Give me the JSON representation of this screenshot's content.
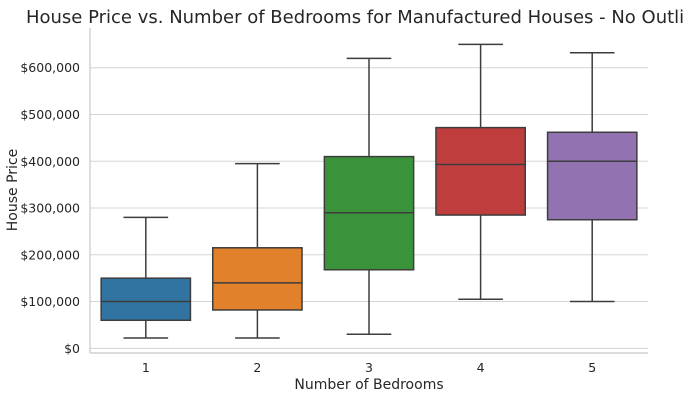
{
  "chart_data": {
    "type": "box",
    "title": "House Price vs. Number of Bedrooms for Manufactured Houses - No Outliers",
    "xlabel": "Number of Bedrooms",
    "ylabel": "House Price",
    "categories": [
      "1",
      "2",
      "3",
      "4",
      "5"
    ],
    "ylim": [
      -10000,
      685000
    ],
    "yticks": [
      0,
      100000,
      200000,
      300000,
      400000,
      500000,
      600000
    ],
    "ytick_labels": [
      "$0",
      "$100,000",
      "$200,000",
      "$300,000",
      "$400,000",
      "$500,000",
      "$600,000"
    ],
    "grid": "horizontal",
    "boxes": [
      {
        "category": "1",
        "min": 22000,
        "q1": 60000,
        "median": 100000,
        "q3": 150000,
        "max": 280000,
        "color": "#3274a1"
      },
      {
        "category": "2",
        "min": 22000,
        "q1": 82000,
        "median": 140000,
        "q3": 215000,
        "max": 395000,
        "color": "#e1812c"
      },
      {
        "category": "3",
        "min": 30000,
        "q1": 168000,
        "median": 290000,
        "q3": 410000,
        "max": 620000,
        "color": "#3a923a"
      },
      {
        "category": "4",
        "min": 105000,
        "q1": 285000,
        "median": 393000,
        "q3": 472000,
        "max": 650000,
        "color": "#c03d3e"
      },
      {
        "category": "5",
        "min": 100000,
        "q1": 275000,
        "median": 400000,
        "q3": 462000,
        "max": 632000,
        "color": "#9372b2"
      }
    ]
  }
}
